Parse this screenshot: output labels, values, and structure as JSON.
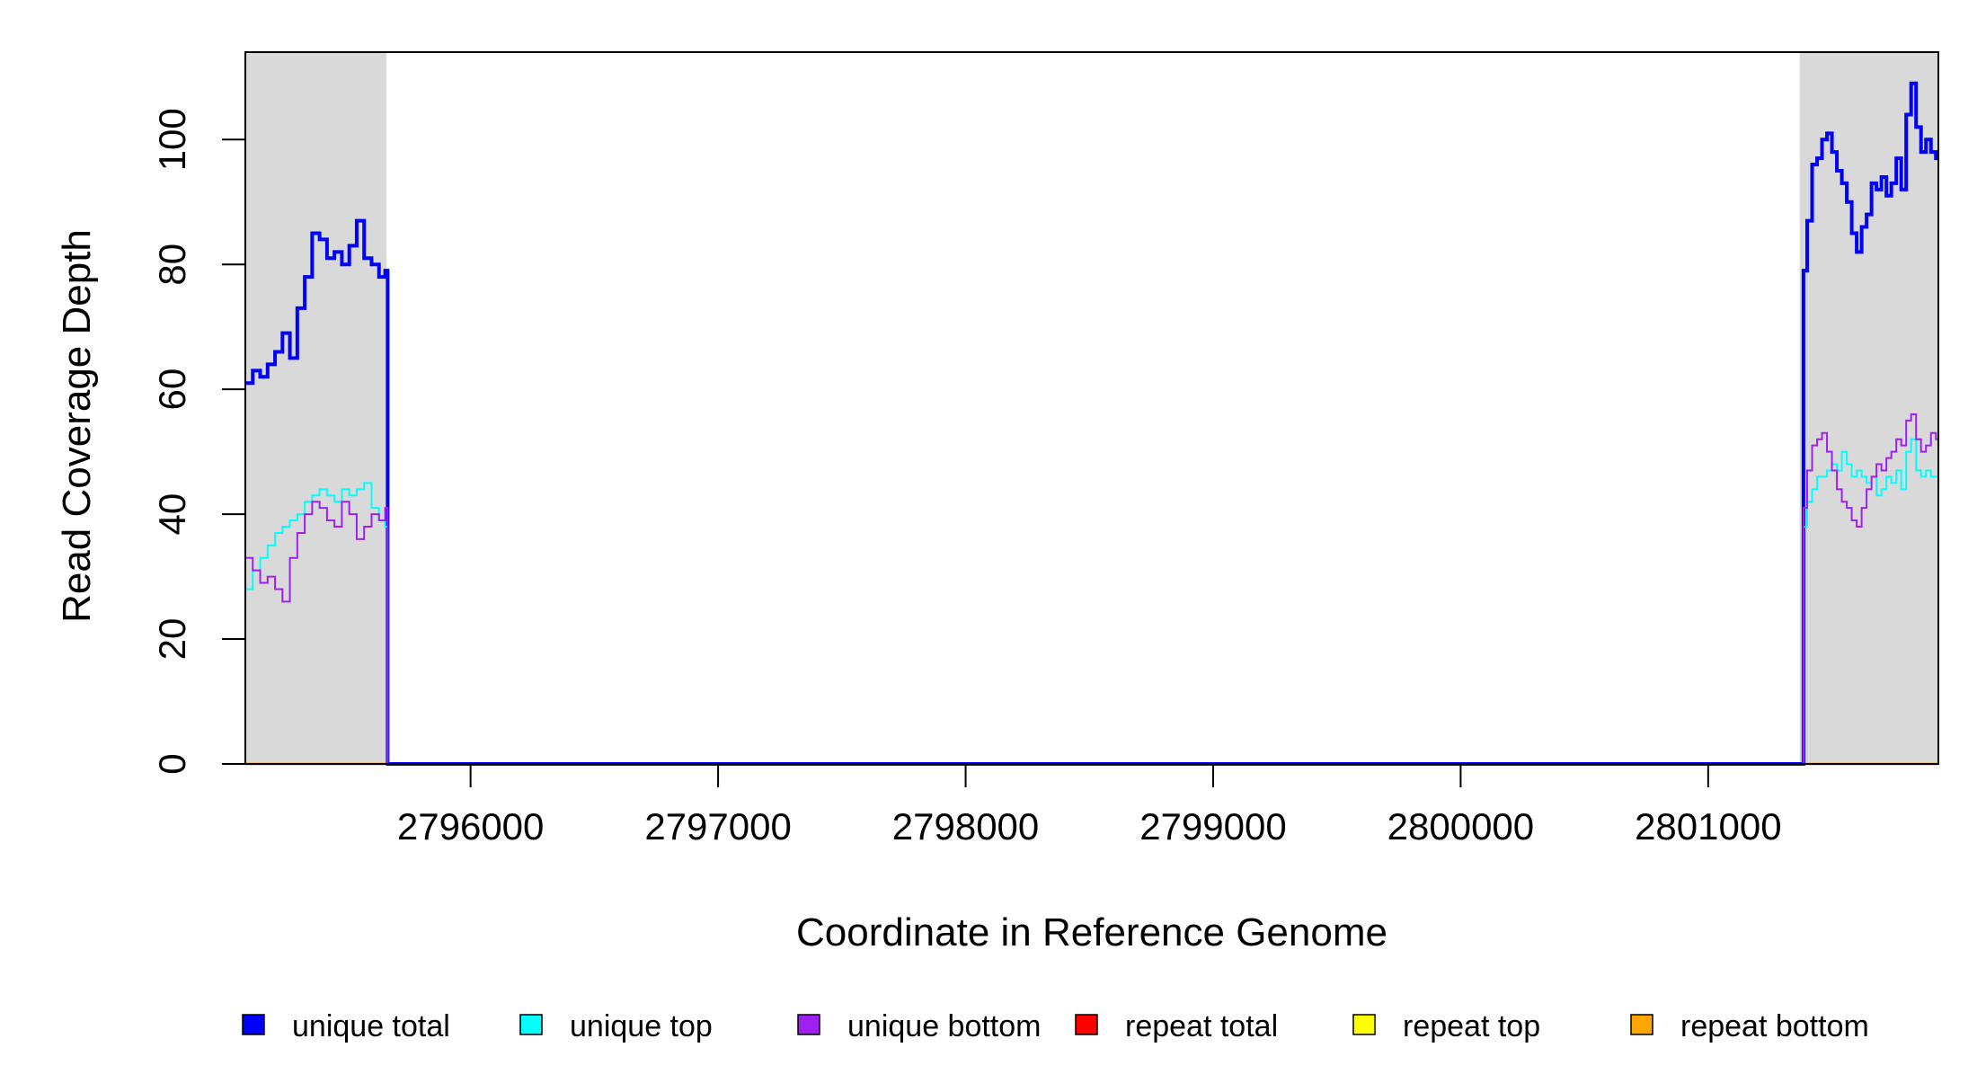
{
  "chart_data": {
    "type": "line",
    "xlabel": "Coordinate in Reference Genome",
    "ylabel": "Read Coverage Depth",
    "xlim": [
      2795090,
      2801930
    ],
    "ylim": [
      0,
      114
    ],
    "x_ticks": [
      2796000,
      2797000,
      2798000,
      2799000,
      2800000,
      2801000
    ],
    "x_tick_labels": [
      "2796000",
      "2797000",
      "2798000",
      "2799000",
      "2800000",
      "2801000"
    ],
    "y_ticks": [
      0,
      20,
      40,
      60,
      80,
      100
    ],
    "y_tick_labels": [
      "0",
      "20",
      "40",
      "60",
      "80",
      "100"
    ],
    "shaded_regions": [
      [
        2795090,
        2795660
      ],
      [
        2801370,
        2801930
      ]
    ],
    "shade_color": "#d9d9d9",
    "legend_position": "bottom",
    "legend": [
      {
        "label": "unique total",
        "color": "#0000ff"
      },
      {
        "label": "unique top",
        "color": "#00ffff"
      },
      {
        "label": "unique bottom",
        "color": "#a020f0"
      },
      {
        "label": "repeat total",
        "color": "#ff0000"
      },
      {
        "label": "repeat top",
        "color": "#ffff00"
      },
      {
        "label": "repeat bottom",
        "color": "#ffa500"
      }
    ],
    "series": [
      {
        "name": "unique total",
        "color": "#0000ff",
        "x": [
          2795090,
          2795120,
          2795150,
          2795180,
          2795210,
          2795240,
          2795270,
          2795300,
          2795330,
          2795360,
          2795390,
          2795420,
          2795450,
          2795480,
          2795510,
          2795540,
          2795570,
          2795600,
          2795630,
          2795655,
          2795665,
          2801370,
          2801385,
          2801400,
          2801420,
          2801440,
          2801460,
          2801480,
          2801500,
          2801520,
          2801540,
          2801560,
          2801580,
          2801600,
          2801620,
          2801640,
          2801660,
          2801680,
          2801700,
          2801720,
          2801740,
          2801760,
          2801780,
          2801800,
          2801820,
          2801840,
          2801860,
          2801880,
          2801900,
          2801920
        ],
        "y": [
          61,
          63,
          62,
          64,
          66,
          69,
          65,
          73,
          78,
          85,
          84,
          81,
          82,
          80,
          83,
          87,
          81,
          80,
          78,
          79,
          0,
          0,
          79,
          87,
          96,
          97,
          100,
          101,
          98,
          95,
          93,
          90,
          85,
          82,
          86,
          88,
          93,
          92,
          94,
          91,
          93,
          97,
          92,
          104,
          109,
          102,
          98,
          100,
          98,
          97
        ]
      },
      {
        "name": "unique top",
        "color": "#00ffff",
        "x": [
          2795090,
          2795120,
          2795150,
          2795180,
          2795210,
          2795240,
          2795270,
          2795300,
          2795330,
          2795360,
          2795390,
          2795420,
          2795450,
          2795480,
          2795510,
          2795540,
          2795570,
          2795600,
          2795630,
          2795655,
          2795665,
          2801370,
          2801385,
          2801400,
          2801420,
          2801440,
          2801460,
          2801480,
          2801500,
          2801520,
          2801540,
          2801560,
          2801580,
          2801600,
          2801620,
          2801640,
          2801660,
          2801680,
          2801700,
          2801720,
          2801740,
          2801760,
          2801780,
          2801800,
          2801820,
          2801840,
          2801860,
          2801880,
          2801900,
          2801920
        ],
        "y": [
          28,
          31,
          33,
          35,
          37,
          38,
          39,
          40,
          42,
          43,
          44,
          43,
          42,
          44,
          43,
          44,
          45,
          41,
          39,
          38,
          0,
          0,
          38,
          42,
          44,
          46,
          46,
          47,
          48,
          47,
          50,
          48,
          46,
          47,
          46,
          45,
          46,
          43,
          44,
          46,
          45,
          47,
          44,
          50,
          52,
          47,
          46,
          47,
          46,
          46
        ]
      },
      {
        "name": "unique bottom",
        "color": "#a020f0",
        "x": [
          2795090,
          2795120,
          2795150,
          2795180,
          2795210,
          2795240,
          2795270,
          2795300,
          2795330,
          2795360,
          2795390,
          2795420,
          2795450,
          2795480,
          2795510,
          2795540,
          2795570,
          2795600,
          2795630,
          2795655,
          2795665,
          2801370,
          2801385,
          2801400,
          2801420,
          2801440,
          2801460,
          2801480,
          2801500,
          2801520,
          2801540,
          2801560,
          2801580,
          2801600,
          2801620,
          2801640,
          2801660,
          2801680,
          2801700,
          2801720,
          2801740,
          2801760,
          2801780,
          2801800,
          2801820,
          2801840,
          2801860,
          2801880,
          2801900,
          2801920
        ],
        "y": [
          33,
          31,
          29,
          30,
          28,
          26,
          33,
          37,
          40,
          42,
          41,
          39,
          38,
          42,
          40,
          36,
          38,
          40,
          39,
          41,
          0,
          0,
          41,
          47,
          51,
          52,
          53,
          50,
          47,
          44,
          42,
          41,
          39,
          38,
          41,
          44,
          46,
          48,
          47,
          49,
          50,
          52,
          51,
          55,
          56,
          52,
          50,
          51,
          53,
          52
        ]
      },
      {
        "name": "repeat total",
        "color": "#ff0000",
        "x": [
          2795090,
          2801930
        ],
        "y": [
          0,
          0
        ]
      },
      {
        "name": "repeat top",
        "color": "#ffff00",
        "x": [
          2795090,
          2801930
        ],
        "y": [
          0,
          0
        ]
      },
      {
        "name": "repeat bottom",
        "color": "#ffa500",
        "x": [
          2795090,
          2801930
        ],
        "y": [
          0,
          0
        ]
      }
    ]
  }
}
